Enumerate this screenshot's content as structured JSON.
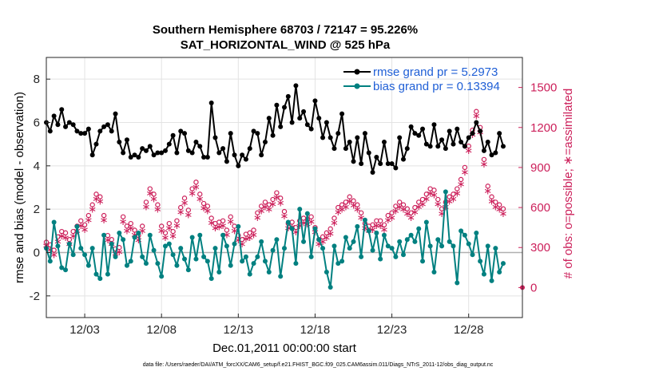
{
  "figure": {
    "title_line1": "Southern Hemisphere 68703 / 72147 = 95.226%",
    "title_line2": "SAT_HORIZONTAL_WIND @ 525 hPa",
    "footer": "data file: /Users/raeder/DAI/ATM_forcXX/CAM6_setup/f.e21.FHIST_BGC.f09_025.CAM6assim.011/Diags_NTrS_2011-12/obs_diag_output.nc"
  },
  "colors": {
    "rmse": "#000000",
    "bias": "#008080",
    "obs": "#cc1f5a",
    "legend_text": "#1f5fd6",
    "zero_line": "#b0b0b0",
    "grid": "#e3e3e3"
  },
  "chart_data": {
    "type": "line",
    "xlabel": "Dec.01,2011 00:00:00 start",
    "ylabel": "rmse and bias (model - observation)",
    "y2label": "# of obs: o=possible; ∗=assimilated",
    "xlim": [
      0.5,
      31.5
    ],
    "ylim": [
      -3,
      9
    ],
    "y2lim": [
      -225,
      1725
    ],
    "x_ticks": [
      3,
      8,
      13,
      18,
      23,
      28
    ],
    "x_tick_labels": [
      "12/03",
      "12/08",
      "12/13",
      "12/18",
      "12/23",
      "12/28"
    ],
    "y_ticks": [
      -2,
      0,
      2,
      4,
      6,
      8
    ],
    "y_tick_labels": [
      "-2",
      "0",
      "2",
      "4",
      "6",
      "8"
    ],
    "y2_ticks": [
      0,
      300,
      600,
      900,
      1200,
      1500
    ],
    "y2_tick_labels": [
      "0",
      "300",
      "600",
      "900",
      "1200",
      "1500"
    ],
    "x_start": 0.5,
    "x_step": 0.25,
    "series": [
      {
        "name": "rmse grand pr = 5.2973",
        "axis": "left",
        "values": [
          6.0,
          5.6,
          6.3,
          5.9,
          6.6,
          5.8,
          6.0,
          5.9,
          5.6,
          5.5,
          5.5,
          5.7,
          4.5,
          5.0,
          5.6,
          5.8,
          5.9,
          5.6,
          6.4,
          5.1,
          4.6,
          5.2,
          4.4,
          4.5,
          4.4,
          4.8,
          4.7,
          4.9,
          4.5,
          4.6,
          4.6,
          4.7,
          5.0,
          5.4,
          4.6,
          5.6,
          5.5,
          4.7,
          4.6,
          5.1,
          4.9,
          4.4,
          4.4,
          6.9,
          5.3,
          4.6,
          4.8,
          4.2,
          5.5,
          4.5,
          4.0,
          4.5,
          4.3,
          4.8,
          5.6,
          5.5,
          4.5,
          5.1,
          6.2,
          5.4,
          6.8,
          5.8,
          6.7,
          7.2,
          6.0,
          7.7,
          6.2,
          6.5,
          5.9,
          5.7,
          7.0,
          6.2,
          5.3,
          6.0,
          5.3,
          4.8,
          5.5,
          6.4,
          4.8,
          5.1,
          4.2,
          5.3,
          4.1,
          5.5,
          4.6,
          3.7,
          4.4,
          4.1,
          5.1,
          4.1,
          4.1,
          3.9,
          5.3,
          4.3,
          4.8,
          5.8,
          5.5,
          5.4,
          5.7,
          5.0,
          4.9,
          5.9,
          4.9,
          5.2,
          4.8,
          5.6,
          5.0,
          5.7,
          5.1,
          4.9,
          5.3,
          5.5,
          6.0,
          5.6,
          4.7,
          5.1,
          4.5,
          4.6,
          5.5,
          4.9
        ]
      },
      {
        "name": "bias grand pr = 0.13394",
        "axis": "left",
        "values": [
          0.2,
          -0.4,
          1.4,
          0.3,
          -0.7,
          -0.8,
          0.4,
          -0.1,
          1.2,
          0.2,
          -0.1,
          -0.6,
          0.2,
          -1.0,
          -1.2,
          0.8,
          -1.0,
          0.4,
          -0.2,
          0.9,
          0.6,
          -0.6,
          -0.4,
          0.7,
          0.9,
          -0.2,
          -0.5,
          0.8,
          0.1,
          -0.5,
          -1.1,
          0.3,
          0.4,
          -0.1,
          -0.6,
          0.2,
          -0.3,
          -0.8,
          0.7,
          -0.3,
          0.8,
          -0.2,
          -0.4,
          -1.2,
          0.2,
          -0.9,
          0.8,
          0.3,
          -0.6,
          0.4,
          1.2,
          -0.4,
          -0.2,
          -1.0,
          -0.5,
          -0.2,
          0.5,
          -0.4,
          -0.9,
          0.1,
          0.6,
          -1.1,
          0.2,
          1.4,
          1.1,
          -0.5,
          2.0,
          0.5,
          1.8,
          -0.2,
          1.1,
          0.6,
          0.2,
          -0.9,
          -1.6,
          0.3,
          -0.5,
          -0.4,
          0.7,
          0.2,
          0.5,
          1.2,
          -0.2,
          1.5,
          1.0,
          0.1,
          0.9,
          -0.3,
          0.8,
          0.3,
          0.2,
          -0.2,
          0.5,
          -0.1,
          0.6,
          0.8,
          0.5,
          1.1,
          -0.4,
          1.4,
          0.3,
          -0.9,
          0.6,
          0.3,
          2.8,
          0.5,
          0.3,
          -1.4,
          1.0,
          0.8,
          0.4,
          -0.1,
          0.9,
          -0.4,
          -1.0,
          0.3,
          -1.3,
          0.2,
          -0.9,
          -0.5
        ]
      },
      {
        "name": "obs possible",
        "axis": "right",
        "values": [
          340,
          320,
          280,
          380,
          420,
          410,
          360,
          420,
          460,
          500,
          470,
          540,
          620,
          700,
          680,
          540,
          390,
          360,
          290,
          300,
          530,
          460,
          480,
          430,
          390,
          460,
          640,
          740,
          700,
          620,
          460,
          410,
          480,
          420,
          500,
          600,
          670,
          580,
          740,
          790,
          700,
          630,
          610,
          520,
          480,
          490,
          500,
          430,
          530,
          460,
          390,
          360,
          400,
          410,
          430,
          560,
          610,
          640,
          620,
          660,
          710,
          670,
          570,
          480,
          490,
          450,
          500,
          520,
          510,
          530,
          450,
          360,
          380,
          410,
          440,
          520,
          600,
          620,
          640,
          680,
          650,
          620,
          560,
          480,
          460,
          470,
          500,
          500,
          470,
          540,
          560,
          610,
          640,
          620,
          590,
          560,
          600,
          640,
          660,
          700,
          740,
          730,
          660,
          590,
          640,
          680,
          700,
          740,
          810,
          900,
          1060,
          1180,
          1320,
          1200,
          960,
          760,
          680,
          640,
          620,
          590
        ]
      },
      {
        "name": "obs assimilated",
        "axis": "right",
        "values": [
          320,
          290,
          250,
          350,
          390,
          380,
          330,
          390,
          430,
          470,
          440,
          510,
          590,
          670,
          650,
          510,
          360,
          330,
          260,
          270,
          500,
          430,
          450,
          400,
          360,
          430,
          610,
          710,
          670,
          590,
          430,
          380,
          450,
          390,
          470,
          570,
          640,
          550,
          710,
          760,
          670,
          600,
          580,
          490,
          450,
          460,
          470,
          400,
          500,
          430,
          360,
          330,
          370,
          380,
          400,
          530,
          580,
          610,
          590,
          630,
          680,
          640,
          540,
          450,
          460,
          420,
          470,
          490,
          480,
          500,
          420,
          330,
          350,
          380,
          410,
          490,
          570,
          590,
          610,
          650,
          620,
          590,
          530,
          450,
          430,
          440,
          470,
          470,
          440,
          510,
          530,
          580,
          610,
          590,
          560,
          530,
          570,
          610,
          630,
          670,
          710,
          700,
          630,
          560,
          610,
          650,
          670,
          710,
          780,
          870,
          1030,
          1150,
          1290,
          1170,
          930,
          730,
          650,
          610,
          590,
          560
        ]
      }
    ],
    "legend": [
      {
        "label": "rmse grand pr = 5.2973",
        "series": "rmse"
      },
      {
        "label": "bias grand pr = 0.13394",
        "series": "bias"
      }
    ]
  }
}
